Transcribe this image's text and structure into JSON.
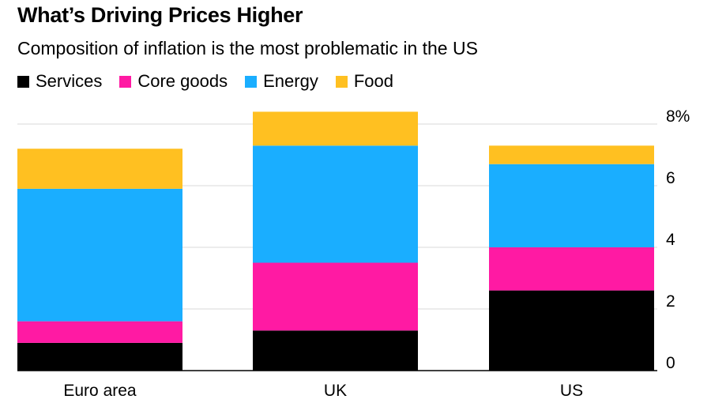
{
  "chart_data": {
    "type": "bar",
    "stacked": true,
    "title": "What’s Driving Prices Higher",
    "subtitle": "Composition of inflation is the most problematic in the US",
    "categories": [
      "Euro area",
      "UK",
      "US"
    ],
    "series": [
      {
        "name": "Services",
        "color": "#000000",
        "values": [
          0.9,
          1.3,
          2.6
        ]
      },
      {
        "name": "Core goods",
        "color": "#ff1aa3",
        "values": [
          0.7,
          2.2,
          1.4
        ]
      },
      {
        "name": "Energy",
        "color": "#1aaeff",
        "values": [
          4.3,
          3.8,
          2.7
        ]
      },
      {
        "name": "Food",
        "color": "#ffc021",
        "values": [
          1.3,
          1.1,
          0.6
        ]
      }
    ],
    "ylim": [
      0,
      8
    ],
    "yticks": [
      0,
      2,
      4,
      6,
      8
    ],
    "ytick_labels": [
      "0",
      "2",
      "4",
      "6",
      "8%"
    ],
    "axis_side": "right",
    "grid": true,
    "legend_position": "top-left"
  }
}
